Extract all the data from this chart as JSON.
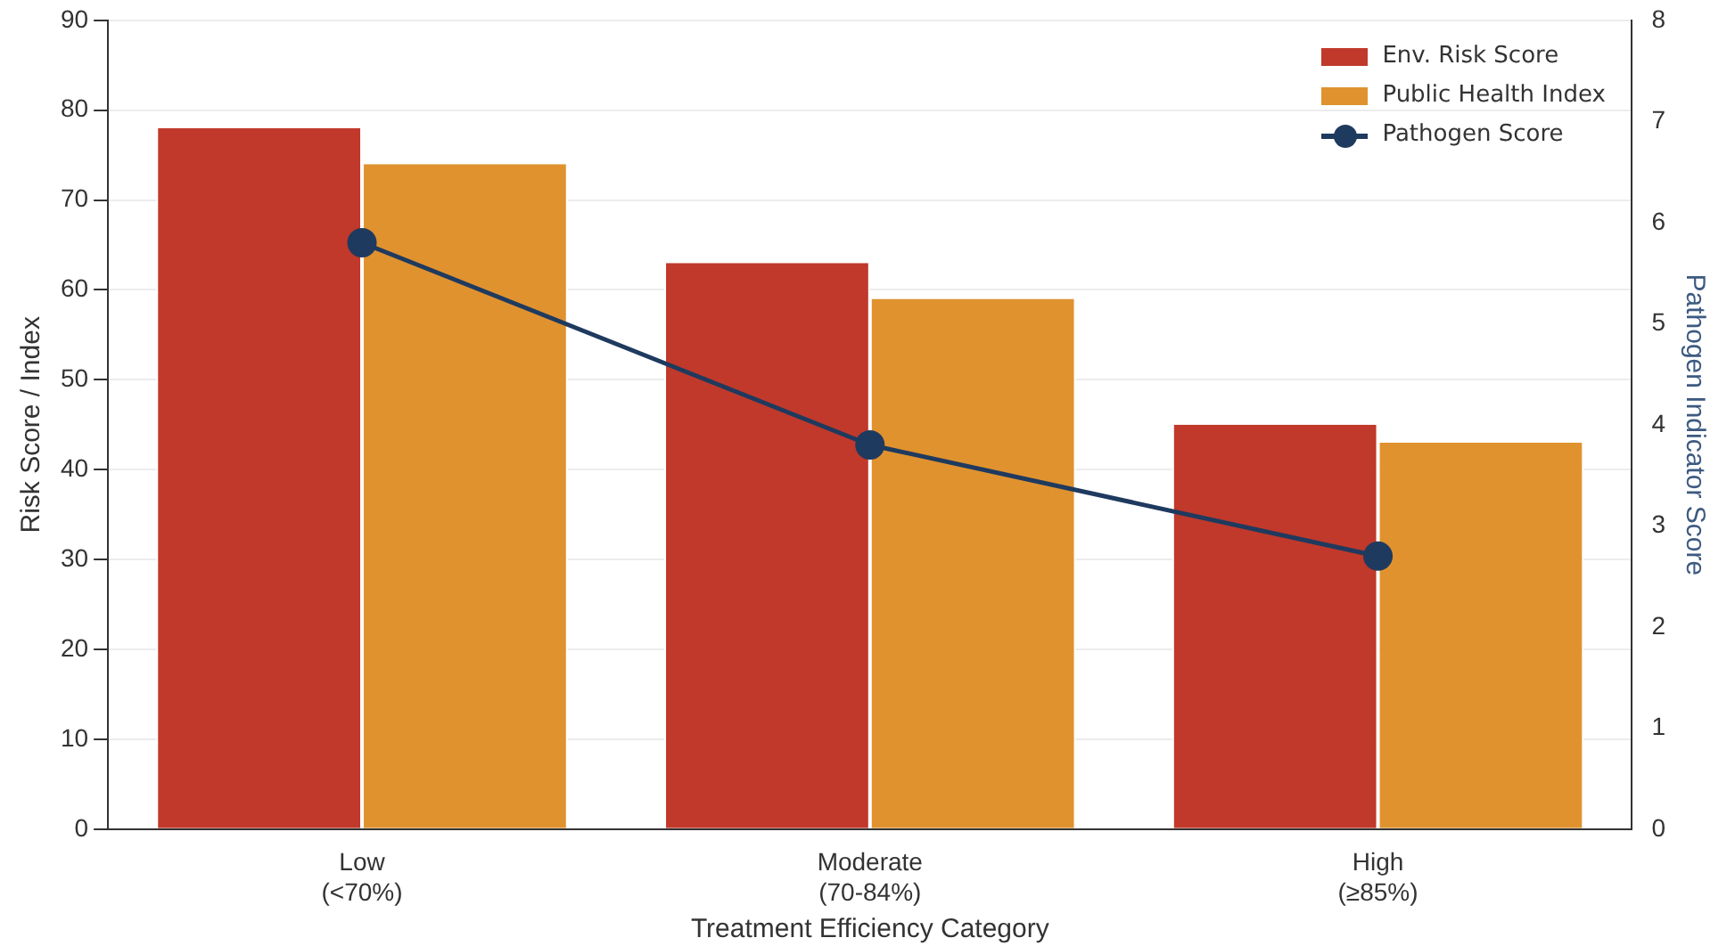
{
  "chart_data": {
    "type": "bar",
    "xlabel": "Treatment Efficiency Category",
    "ylabel": "Risk Score / Index",
    "y2label": "Pathogen Indicator Score",
    "categories": [
      "Low\n(<70%)",
      "Moderate\n(70-84%)",
      "High\n(≥85%)"
    ],
    "series": [
      {
        "name": "Env. Risk Score",
        "color": "#c0392b",
        "values": [
          78,
          63,
          45
        ]
      },
      {
        "name": "Public Health Index",
        "color": "#e0922f",
        "values": [
          74,
          59,
          43
        ]
      },
      {
        "name": "Pathogen Score",
        "color": "#1f3a5f",
        "type": "line",
        "axis": "y2",
        "values": [
          5.8,
          3.8,
          2.7
        ]
      }
    ],
    "ylim": [
      0,
      90
    ],
    "yticks": [
      0,
      10,
      20,
      30,
      40,
      50,
      60,
      70,
      80,
      90
    ],
    "y2lim": [
      0,
      8
    ],
    "y2ticks": [
      0,
      1,
      2,
      3,
      4,
      5,
      6,
      7,
      8
    ],
    "grid": "y",
    "legend": "top right",
    "marker": "circle",
    "line_style": "solid"
  }
}
